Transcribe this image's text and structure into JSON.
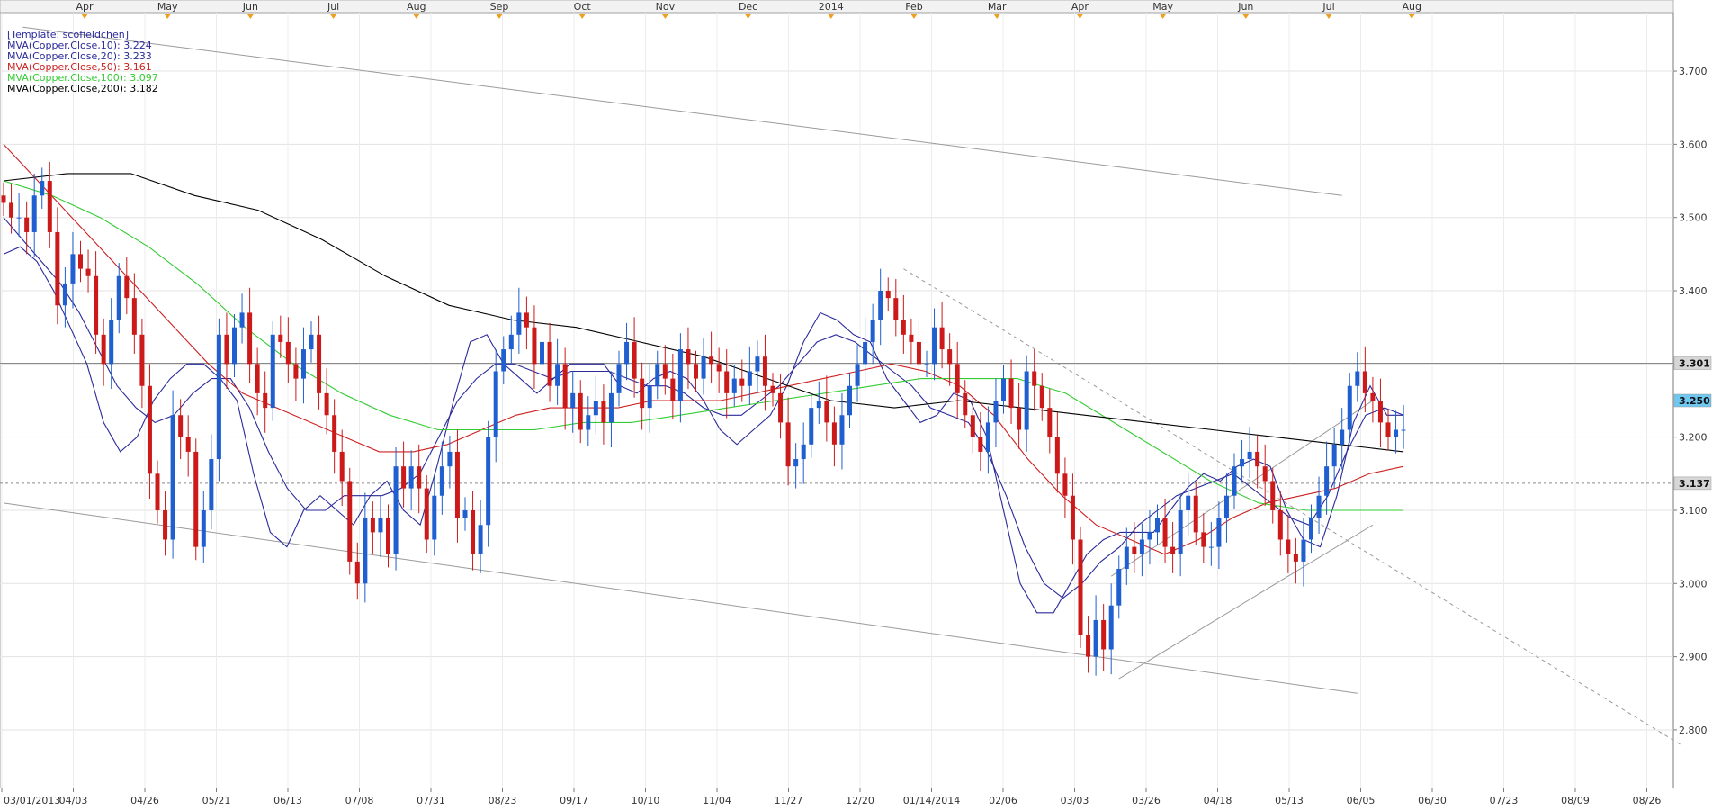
{
  "chart_data": {
    "type": "candlestick",
    "instrument": "Copper",
    "template_label": "[Template: scofieldchen]",
    "legend": [
      {
        "label": "MVA(Copper.Close,10): 3.224",
        "color": "#2a2a9a"
      },
      {
        "label": "MVA(Copper.Close,20): 3.233",
        "color": "#2a2a9a"
      },
      {
        "label": "MVA(Copper.Close,50): 3.161",
        "color": "#cc2020"
      },
      {
        "label": "MVA(Copper.Close,100): 3.097",
        "color": "#33cc33"
      },
      {
        "label": "MVA(Copper.Close,200): 3.182",
        "color": "#000000"
      }
    ],
    "y_axis": {
      "min": 2.72,
      "max": 3.78,
      "ticks": [
        "3.700",
        "3.600",
        "3.500",
        "3.400",
        "3.300",
        "3.200",
        "3.100",
        "3.000",
        "2.900",
        "2.800"
      ],
      "price_tags": [
        {
          "label": "3.301",
          "value": 3.301,
          "style": "solid"
        },
        {
          "label": "3.250",
          "value": 3.25,
          "style": "highlight"
        },
        {
          "label": "3.137",
          "value": 3.137,
          "style": "dashed"
        }
      ]
    },
    "top_months": [
      "Apr",
      "May",
      "Jun",
      "Jul",
      "Aug",
      "Sep",
      "Oct",
      "Nov",
      "Dec",
      "2014",
      "Feb",
      "Mar",
      "Apr",
      "May",
      "Jun",
      "Jul",
      "Aug"
    ],
    "bottom_dates": [
      "03/01/2013",
      "04/03",
      "04/26",
      "05/21",
      "06/13",
      "07/08",
      "07/31",
      "08/23",
      "09/17",
      "10/10",
      "11/04",
      "11/27",
      "12/20",
      "01/14/2014",
      "02/06",
      "03/03",
      "03/26",
      "04/18",
      "05/13",
      "06/05",
      "06/30",
      "07/23",
      "08/09",
      "08/26"
    ],
    "grid": true,
    "series_close": [
      3.52,
      3.5,
      3.5,
      3.48,
      3.53,
      3.55,
      3.48,
      3.38,
      3.41,
      3.45,
      3.43,
      3.42,
      3.34,
      3.3,
      3.36,
      3.42,
      3.39,
      3.34,
      3.27,
      3.15,
      3.1,
      3.06,
      3.23,
      3.2,
      3.18,
      3.05,
      3.1,
      3.17,
      3.34,
      3.3,
      3.35,
      3.37,
      3.3,
      3.26,
      3.24,
      3.34,
      3.33,
      3.3,
      3.28,
      3.32,
      3.34,
      3.26,
      3.23,
      3.18,
      3.14,
      3.03,
      3.0,
      3.09,
      3.07,
      3.09,
      3.04,
      3.16,
      3.13,
      3.16,
      3.13,
      3.06,
      3.12,
      3.16,
      3.18,
      3.09,
      3.1,
      3.04,
      3.08,
      3.2,
      3.29,
      3.32,
      3.34,
      3.37,
      3.35,
      3.3,
      3.33,
      3.27,
      3.3,
      3.24,
      3.26,
      3.21,
      3.23,
      3.25,
      3.22,
      3.26,
      3.3,
      3.33,
      3.28,
      3.24,
      3.27,
      3.3,
      3.28,
      3.25,
      3.32,
      3.3,
      3.28,
      3.31,
      3.3,
      3.29,
      3.26,
      3.28,
      3.27,
      3.29,
      3.31,
      3.27,
      3.26,
      3.22,
      3.16,
      3.17,
      3.19,
      3.24,
      3.25,
      3.22,
      3.19,
      3.23,
      3.27,
      3.3,
      3.33,
      3.36,
      3.4,
      3.39,
      3.36,
      3.34,
      3.33,
      3.3,
      3.3,
      3.35,
      3.32,
      3.3,
      3.26,
      3.23,
      3.2,
      3.18,
      3.22,
      3.25,
      3.28,
      3.24,
      3.21,
      3.29,
      3.27,
      3.24,
      3.2,
      3.15,
      3.12,
      3.06,
      2.93,
      2.9,
      2.95,
      2.91,
      2.97,
      3.02,
      3.05,
      3.04,
      3.06,
      3.07,
      3.09,
      3.05,
      3.04,
      3.1,
      3.12,
      3.07,
      3.05,
      3.05,
      3.09,
      3.12,
      3.16,
      3.17,
      3.18,
      3.16,
      3.14,
      3.1,
      3.06,
      3.04,
      3.03,
      3.06,
      3.09,
      3.12,
      3.16,
      3.19,
      3.21,
      3.27,
      3.29,
      3.26,
      3.25,
      3.22,
      3.2,
      3.21,
      3.21
    ],
    "moving_averages": {
      "mva10": [
        3.45,
        3.46,
        3.44,
        3.4,
        3.35,
        3.3,
        3.22,
        3.18,
        3.2,
        3.25,
        3.28,
        3.3,
        3.3,
        3.28,
        3.25,
        3.15,
        3.07,
        3.05,
        3.1,
        3.12,
        3.1,
        3.08,
        3.12,
        3.14,
        3.1,
        3.08,
        3.16,
        3.25,
        3.33,
        3.34,
        3.3,
        3.28,
        3.26,
        3.28,
        3.3,
        3.3,
        3.3,
        3.27,
        3.26,
        3.28,
        3.29,
        3.28,
        3.25,
        3.21,
        3.19,
        3.21,
        3.23,
        3.27,
        3.33,
        3.37,
        3.36,
        3.34,
        3.33,
        3.28,
        3.25,
        3.22,
        3.23,
        3.26,
        3.25,
        3.2,
        3.1,
        3.0,
        2.96,
        2.96,
        3.0,
        3.04,
        3.06,
        3.07,
        3.07,
        3.07,
        3.1,
        3.13,
        3.15,
        3.14,
        3.16,
        3.17,
        3.16,
        3.1,
        3.06,
        3.05,
        3.12,
        3.22,
        3.27,
        3.23,
        3.23
      ],
      "mva20": [
        3.5,
        3.47,
        3.44,
        3.41,
        3.37,
        3.32,
        3.27,
        3.24,
        3.22,
        3.23,
        3.26,
        3.28,
        3.28,
        3.24,
        3.18,
        3.13,
        3.1,
        3.1,
        3.12,
        3.12,
        3.12,
        3.13,
        3.15,
        3.2,
        3.25,
        3.28,
        3.3,
        3.3,
        3.29,
        3.28,
        3.29,
        3.29,
        3.29,
        3.28,
        3.27,
        3.27,
        3.26,
        3.24,
        3.23,
        3.23,
        3.25,
        3.27,
        3.3,
        3.33,
        3.34,
        3.33,
        3.31,
        3.29,
        3.27,
        3.24,
        3.23,
        3.22,
        3.18,
        3.12,
        3.05,
        3.0,
        2.98,
        3.0,
        3.03,
        3.05,
        3.08,
        3.1,
        3.12,
        3.13,
        3.14,
        3.15,
        3.13,
        3.11,
        3.09,
        3.08,
        3.12,
        3.18,
        3.23,
        3.24,
        3.23
      ],
      "mva50": [
        3.6,
        3.55,
        3.5,
        3.45,
        3.4,
        3.35,
        3.3,
        3.26,
        3.24,
        3.22,
        3.2,
        3.18,
        3.18,
        3.19,
        3.21,
        3.23,
        3.24,
        3.24,
        3.24,
        3.25,
        3.25,
        3.25,
        3.26,
        3.27,
        3.28,
        3.29,
        3.3,
        3.29,
        3.27,
        3.23,
        3.17,
        3.12,
        3.08,
        3.06,
        3.04,
        3.06,
        3.09,
        3.11,
        3.12,
        3.13,
        3.15,
        3.16
      ],
      "mva100": [
        3.55,
        3.53,
        3.5,
        3.46,
        3.41,
        3.35,
        3.3,
        3.26,
        3.23,
        3.21,
        3.21,
        3.21,
        3.22,
        3.22,
        3.23,
        3.24,
        3.25,
        3.26,
        3.27,
        3.28,
        3.28,
        3.28,
        3.26,
        3.22,
        3.18,
        3.14,
        3.11,
        3.1,
        3.1,
        3.1
      ],
      "mva200": [
        3.55,
        3.56,
        3.56,
        3.53,
        3.51,
        3.47,
        3.42,
        3.38,
        3.36,
        3.35,
        3.33,
        3.31,
        3.28,
        3.25,
        3.24,
        3.25,
        3.24,
        3.23,
        3.22,
        3.21,
        3.2,
        3.19,
        3.18
      ]
    },
    "trendlines": [
      {
        "name": "channel-top",
        "style": "solid",
        "from": [
          2.5,
          3.76
        ],
        "to": [
          174,
          3.53
        ]
      },
      {
        "name": "channel-bottom",
        "style": "solid",
        "from": [
          0,
          3.11
        ],
        "to": [
          176,
          2.85
        ]
      },
      {
        "name": "descending-dashed",
        "style": "dashed",
        "from": [
          117,
          3.43
        ],
        "to": [
          218,
          2.78
        ]
      },
      {
        "name": "rising-channel-upper",
        "style": "solid",
        "from": [
          144,
          3.01
        ],
        "to": [
          178,
          3.25
        ]
      },
      {
        "name": "rising-channel-lower",
        "style": "solid",
        "from": [
          145,
          2.87
        ],
        "to": [
          178,
          3.08
        ]
      }
    ]
  }
}
